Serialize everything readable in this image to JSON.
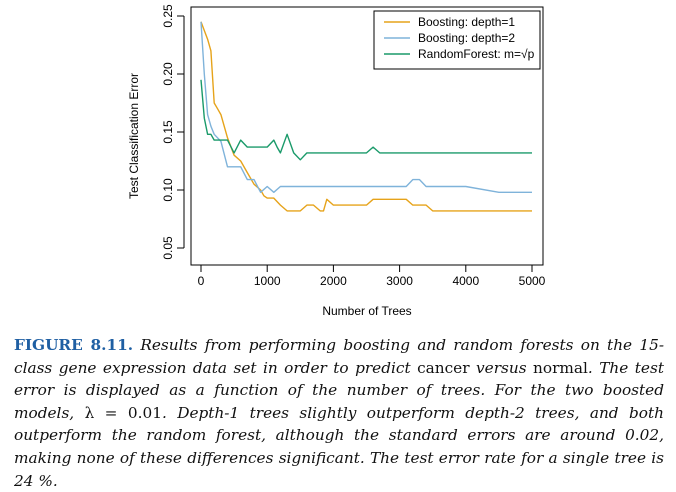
{
  "chart_data": {
    "type": "line",
    "xlabel": "Number of Trees",
    "ylabel": "Test Classification Error",
    "xlim": [
      0,
      5000
    ],
    "ylim": [
      0.05,
      0.25
    ],
    "xticks": [
      0,
      1000,
      2000,
      3000,
      4000,
      5000
    ],
    "yticks": [
      0.05,
      0.1,
      0.15,
      0.2,
      0.25
    ],
    "xtick_labels": [
      "0",
      "1000",
      "2000",
      "3000",
      "4000",
      "5000"
    ],
    "ytick_labels": [
      "0.05",
      "0.10",
      "0.15",
      "0.20",
      "0.25"
    ],
    "legend_position": "top-right",
    "series": [
      {
        "name": "Boosting: depth=1",
        "color": "#E6A31A",
        "x": [
          0,
          100,
          150,
          200,
          250,
          300,
          400,
          500,
          600,
          700,
          800,
          900,
          950,
          1000,
          1100,
          1200,
          1300,
          1400,
          1500,
          1600,
          1700,
          1800,
          1850,
          1900,
          2000,
          2100,
          2200,
          2300,
          2400,
          2500,
          2600,
          2700,
          2800,
          2900,
          3000,
          3100,
          3200,
          3300,
          3400,
          3500,
          3600,
          3700,
          3800,
          3900,
          4000,
          4500,
          5000
        ],
        "y": [
          0.245,
          0.23,
          0.22,
          0.175,
          0.17,
          0.165,
          0.145,
          0.13,
          0.125,
          0.115,
          0.105,
          0.1,
          0.095,
          0.093,
          0.093,
          0.087,
          0.082,
          0.082,
          0.082,
          0.087,
          0.087,
          0.082,
          0.082,
          0.092,
          0.087,
          0.087,
          0.087,
          0.087,
          0.087,
          0.087,
          0.092,
          0.092,
          0.092,
          0.092,
          0.092,
          0.092,
          0.087,
          0.087,
          0.087,
          0.082,
          0.082,
          0.082,
          0.082,
          0.082,
          0.082,
          0.082,
          0.082
        ]
      },
      {
        "name": "Boosting: depth=2",
        "color": "#7FB3DA",
        "x": [
          0,
          50,
          100,
          150,
          200,
          300,
          400,
          500,
          600,
          700,
          800,
          900,
          1000,
          1100,
          1200,
          1300,
          1500,
          2000,
          2500,
          3000,
          3100,
          3200,
          3300,
          3400,
          3500,
          4000,
          4500,
          5000
        ],
        "y": [
          0.245,
          0.2,
          0.165,
          0.155,
          0.148,
          0.142,
          0.12,
          0.12,
          0.12,
          0.109,
          0.109,
          0.098,
          0.103,
          0.098,
          0.103,
          0.103,
          0.103,
          0.103,
          0.103,
          0.103,
          0.103,
          0.109,
          0.109,
          0.103,
          0.103,
          0.103,
          0.098,
          0.098
        ]
      },
      {
        "name": "RandomForest: m=√p",
        "color": "#1A9A6A",
        "x": [
          0,
          50,
          100,
          150,
          200,
          300,
          400,
          500,
          600,
          700,
          800,
          1000,
          1100,
          1150,
          1200,
          1300,
          1400,
          1500,
          1600,
          1700,
          2000,
          2500,
          2600,
          2700,
          3000,
          3500,
          4000,
          4500,
          5000
        ],
        "y": [
          0.195,
          0.162,
          0.148,
          0.148,
          0.143,
          0.143,
          0.143,
          0.132,
          0.143,
          0.137,
          0.137,
          0.137,
          0.143,
          0.137,
          0.132,
          0.148,
          0.132,
          0.126,
          0.132,
          0.132,
          0.132,
          0.132,
          0.137,
          0.132,
          0.132,
          0.132,
          0.132,
          0.132,
          0.132
        ]
      }
    ]
  },
  "caption": {
    "label": "FIGURE 8.11.",
    "part1": " Results from performing boosting and random forests on the 15-class gene expression data set in order to predict ",
    "word_cancer": "cancer",
    "part2": " versus ",
    "word_normal": "normal",
    "part3": ". The test error is displayed as a function of the number of trees. For the two boosted models, ",
    "lambda_expr": "λ = 0.01",
    "part4": ". Depth-1 trees slightly outperform depth-2 trees, and both outperform the random forest, although the standard errors are around 0.02, making none of these differences significant. The test error rate for a single tree is 24 %."
  }
}
